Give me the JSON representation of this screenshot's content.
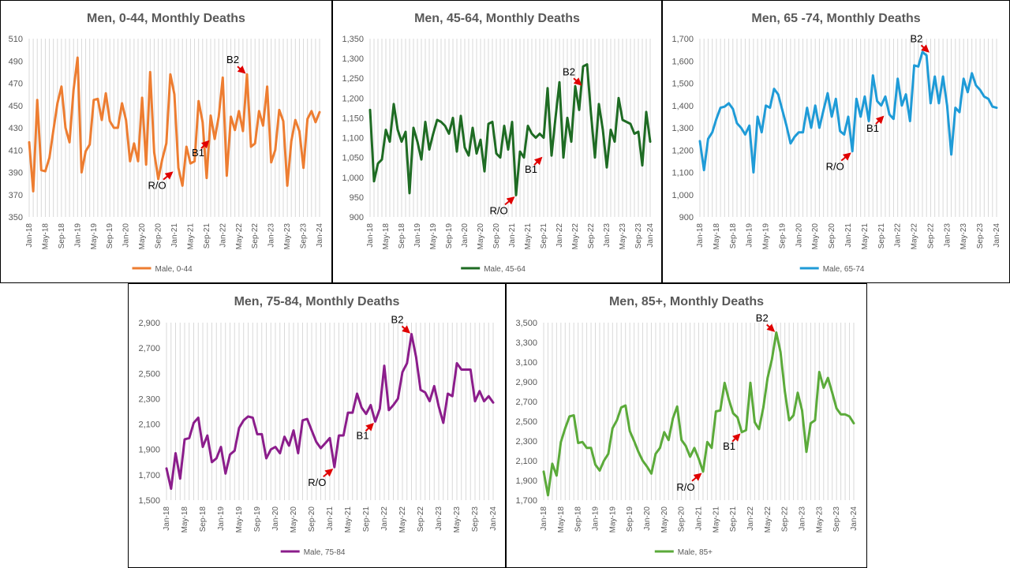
{
  "chart_data": [
    {
      "type": "line",
      "title": "Men, 0-44, Monthly Deaths",
      "series": [
        {
          "name": "Male, 0-44",
          "color": "#ED7D31",
          "values": [
            417,
            373,
            455,
            392,
            391,
            403,
            428,
            452,
            467,
            430,
            417,
            464,
            493,
            390,
            409,
            415,
            455,
            456,
            437,
            461,
            436,
            430,
            430,
            452,
            437,
            400,
            416,
            400,
            457,
            397,
            480,
            408,
            384,
            402,
            416,
            478,
            460,
            394,
            378,
            413,
            398,
            400,
            454,
            435,
            385,
            441,
            420,
            440,
            475,
            387,
            440,
            428,
            445,
            427,
            478,
            413,
            416,
            445,
            432,
            467,
            399,
            410,
            446,
            436,
            378,
            418,
            437,
            427,
            394,
            438,
            445,
            435,
            444
          ]
        }
      ],
      "ylim": [
        350,
        510
      ],
      "yticks": [
        "350",
        "370",
        "390",
        "410",
        "430",
        "450",
        "470",
        "490",
        "510"
      ],
      "xticks": [
        "Jan-18",
        "May-18",
        "Sep-18",
        "Jan-19",
        "May-19",
        "Sep-19",
        "Jan-20",
        "May-20",
        "Sep-20",
        "Jan-21",
        "May-21",
        "Sep-21",
        "Jan-22",
        "May-22",
        "Sep-22",
        "Jan-23",
        "May-23",
        "Sep-23",
        "Jan-24"
      ],
      "annotations": [
        {
          "label": "R/O",
          "x": 36,
          "y": 392
        },
        {
          "label": "B1",
          "x": 45,
          "y": 420
        },
        {
          "label": "B2",
          "x": 54,
          "y": 478
        }
      ]
    },
    {
      "type": "line",
      "title": "Men, 45-64, Monthly Deaths",
      "series": [
        {
          "name": "Male, 45-64",
          "color": "#1E6B23",
          "values": [
            1170,
            990,
            1035,
            1045,
            1120,
            1090,
            1185,
            1120,
            1090,
            1115,
            960,
            1125,
            1090,
            1045,
            1140,
            1070,
            1110,
            1145,
            1140,
            1130,
            1110,
            1150,
            1065,
            1155,
            1075,
            1055,
            1125,
            1060,
            1095,
            1015,
            1135,
            1140,
            1060,
            1050,
            1130,
            1070,
            1140,
            955,
            1065,
            1050,
            1130,
            1110,
            1100,
            1110,
            1100,
            1225,
            1055,
            1150,
            1240,
            1050,
            1150,
            1090,
            1230,
            1170,
            1280,
            1285,
            1160,
            1050,
            1185,
            1120,
            1025,
            1120,
            1090,
            1200,
            1145,
            1140,
            1135,
            1110,
            1115,
            1030,
            1165,
            1090
          ]
        }
      ],
      "ylim": [
        900,
        1350
      ],
      "yticks": [
        "900",
        "950",
        "1,000",
        "1,050",
        "1,100",
        "1,150",
        "1,200",
        "1,250",
        "1,300",
        "1,350"
      ],
      "xticks": [
        "Jan-18",
        "May-18",
        "Sep-18",
        "Jan-19",
        "May-19",
        "Sep-19",
        "Jan-20",
        "May-20",
        "Sep-20",
        "Jan-21",
        "May-21",
        "Sep-21",
        "Jan-22",
        "May-22",
        "Sep-22",
        "Jan-23",
        "May-23",
        "Sep-23",
        "Jan-24"
      ],
      "annotations": [
        {
          "label": "R/O",
          "x": 37,
          "y": 955
        },
        {
          "label": "B1",
          "x": 44,
          "y": 1055
        },
        {
          "label": "B2",
          "x": 54,
          "y": 1230
        }
      ]
    },
    {
      "type": "line",
      "title": "Men, 65 -74, Monthly Deaths",
      "series": [
        {
          "name": "Male, 65-74",
          "color": "#1F9BD7",
          "values": [
            1240,
            1110,
            1250,
            1280,
            1340,
            1390,
            1395,
            1410,
            1385,
            1320,
            1300,
            1270,
            1310,
            1100,
            1350,
            1280,
            1400,
            1390,
            1475,
            1450,
            1380,
            1310,
            1230,
            1260,
            1280,
            1280,
            1390,
            1300,
            1400,
            1300,
            1380,
            1455,
            1350,
            1430,
            1285,
            1270,
            1350,
            1195,
            1430,
            1350,
            1440,
            1330,
            1535,
            1420,
            1400,
            1440,
            1360,
            1340,
            1520,
            1400,
            1450,
            1330,
            1580,
            1575,
            1640,
            1625,
            1410,
            1530,
            1410,
            1530,
            1400,
            1180,
            1390,
            1370,
            1520,
            1460,
            1545,
            1490,
            1470,
            1440,
            1430,
            1395,
            1390
          ]
        }
      ],
      "ylim": [
        900,
        1700
      ],
      "yticks": [
        "900",
        "1,000",
        "1,100",
        "1,200",
        "1,300",
        "1,400",
        "1,500",
        "1,600",
        "1,700"
      ],
      "xticks": [
        "Jan-18",
        "May-18",
        "Sep-18",
        "Jan-19",
        "May-19",
        "Sep-19",
        "Jan-20",
        "May-20",
        "Sep-20",
        "Jan-21",
        "May-21",
        "Sep-21",
        "Jan-22",
        "May-22",
        "Sep-22",
        "Jan-23",
        "May-23",
        "Sep-23",
        "Jan-24"
      ],
      "annotations": [
        {
          "label": "R/O",
          "x": 37,
          "y": 1195
        },
        {
          "label": "B1",
          "x": 45,
          "y": 1360
        },
        {
          "label": "B2",
          "x": 56,
          "y": 1635
        }
      ]
    },
    {
      "type": "line",
      "title": "Men, 75-84, Monthly Deaths",
      "series": [
        {
          "name": "Male, 75-84",
          "color": "#8B1D8B",
          "values": [
            1750,
            1590,
            1870,
            1670,
            1980,
            1990,
            2110,
            2150,
            1920,
            2010,
            1800,
            1830,
            1920,
            1710,
            1860,
            1890,
            2070,
            2130,
            2160,
            2150,
            2020,
            2020,
            1830,
            1900,
            1920,
            1870,
            2000,
            1930,
            2050,
            1870,
            2130,
            2140,
            2050,
            1960,
            1910,
            1950,
            1990,
            1760,
            2010,
            2010,
            2190,
            2190,
            2340,
            2230,
            2180,
            2250,
            2120,
            2220,
            2560,
            2210,
            2250,
            2300,
            2510,
            2580,
            2810,
            2630,
            2370,
            2350,
            2280,
            2400,
            2240,
            2110,
            2340,
            2320,
            2580,
            2530,
            2530,
            2530,
            2280,
            2360,
            2280,
            2320,
            2270
          ]
        }
      ],
      "ylim": [
        1500,
        2900
      ],
      "yticks": [
        "1,500",
        "1,700",
        "1,900",
        "2,100",
        "2,300",
        "2,500",
        "2,700",
        "2,900"
      ],
      "xticks": [
        "Jan-18",
        "May-18",
        "Sep-18",
        "Jan-19",
        "May-19",
        "Sep-19",
        "Jan-20",
        "May-20",
        "Sep-20",
        "Jan-21",
        "May-21",
        "Sep-21",
        "Jan-22",
        "May-22",
        "Sep-22",
        "Jan-23",
        "May-23",
        "Sep-23",
        "Jan-24"
      ],
      "annotations": [
        {
          "label": "R/O",
          "x": 37,
          "y": 1760
        },
        {
          "label": "B1",
          "x": 46,
          "y": 2120
        },
        {
          "label": "B2",
          "x": 54,
          "y": 2810
        }
      ]
    },
    {
      "type": "line",
      "title": "Men, 85+, Monthly Deaths",
      "series": [
        {
          "name": "Male, 85+",
          "color": "#5BAA3A",
          "values": [
            1990,
            1750,
            2070,
            1950,
            2290,
            2430,
            2550,
            2560,
            2280,
            2290,
            2230,
            2230,
            2060,
            2000,
            2100,
            2170,
            2430,
            2510,
            2640,
            2660,
            2400,
            2300,
            2190,
            2100,
            2040,
            1970,
            2170,
            2230,
            2390,
            2310,
            2530,
            2650,
            2310,
            2250,
            2140,
            2230,
            2120,
            1990,
            2290,
            2230,
            2600,
            2610,
            2890,
            2720,
            2580,
            2540,
            2390,
            2410,
            2890,
            2490,
            2420,
            2640,
            2940,
            3130,
            3400,
            3200,
            2800,
            2510,
            2560,
            2790,
            2610,
            2190,
            2480,
            2510,
            3000,
            2840,
            2940,
            2790,
            2630,
            2570,
            2570,
            2550,
            2480
          ]
        }
      ],
      "ylim": [
        1700,
        3500
      ],
      "yticks": [
        "1,700",
        "1,900",
        "2,100",
        "2,300",
        "2,500",
        "2,700",
        "2,900",
        "3,100",
        "3,300",
        "3,500"
      ],
      "xticks": [
        "Jan-18",
        "May-18",
        "Sep-18",
        "Jan-19",
        "May-19",
        "Sep-19",
        "Jan-20",
        "May-20",
        "Sep-20",
        "Jan-21",
        "May-21",
        "Sep-21",
        "Jan-22",
        "May-22",
        "Sep-22",
        "Jan-23",
        "May-23",
        "Sep-23",
        "Jan-24"
      ],
      "annotations": [
        {
          "label": "R/O",
          "x": 37,
          "y": 1990
        },
        {
          "label": "B1",
          "x": 46,
          "y": 2390
        },
        {
          "label": "B2",
          "x": 54,
          "y": 3400
        }
      ]
    }
  ]
}
